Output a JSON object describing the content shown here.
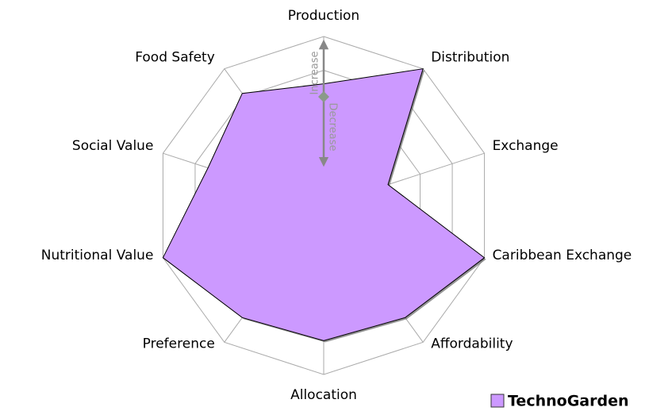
{
  "chart_data": {
    "type": "radar",
    "categories": [
      "Production",
      "Distribution",
      "Exchange",
      "Caribbean Exchange",
      "Affordability",
      "Allocation",
      "Preference",
      "Nutritional Value",
      "Social Value",
      "Food Safety"
    ],
    "series": [
      {
        "name": "TechnoGarden",
        "color": "#cc99ff",
        "values": [
          3.6,
          5,
          2,
          5,
          4.1,
          4,
          4.1,
          5,
          3.6,
          4.1
        ]
      }
    ],
    "rlim": [
      0,
      5
    ],
    "rticks": [
      1,
      2,
      3,
      4,
      5
    ],
    "grid": true,
    "legend": "lower right",
    "annotations": [
      "Increase",
      "Decrease"
    ]
  }
}
